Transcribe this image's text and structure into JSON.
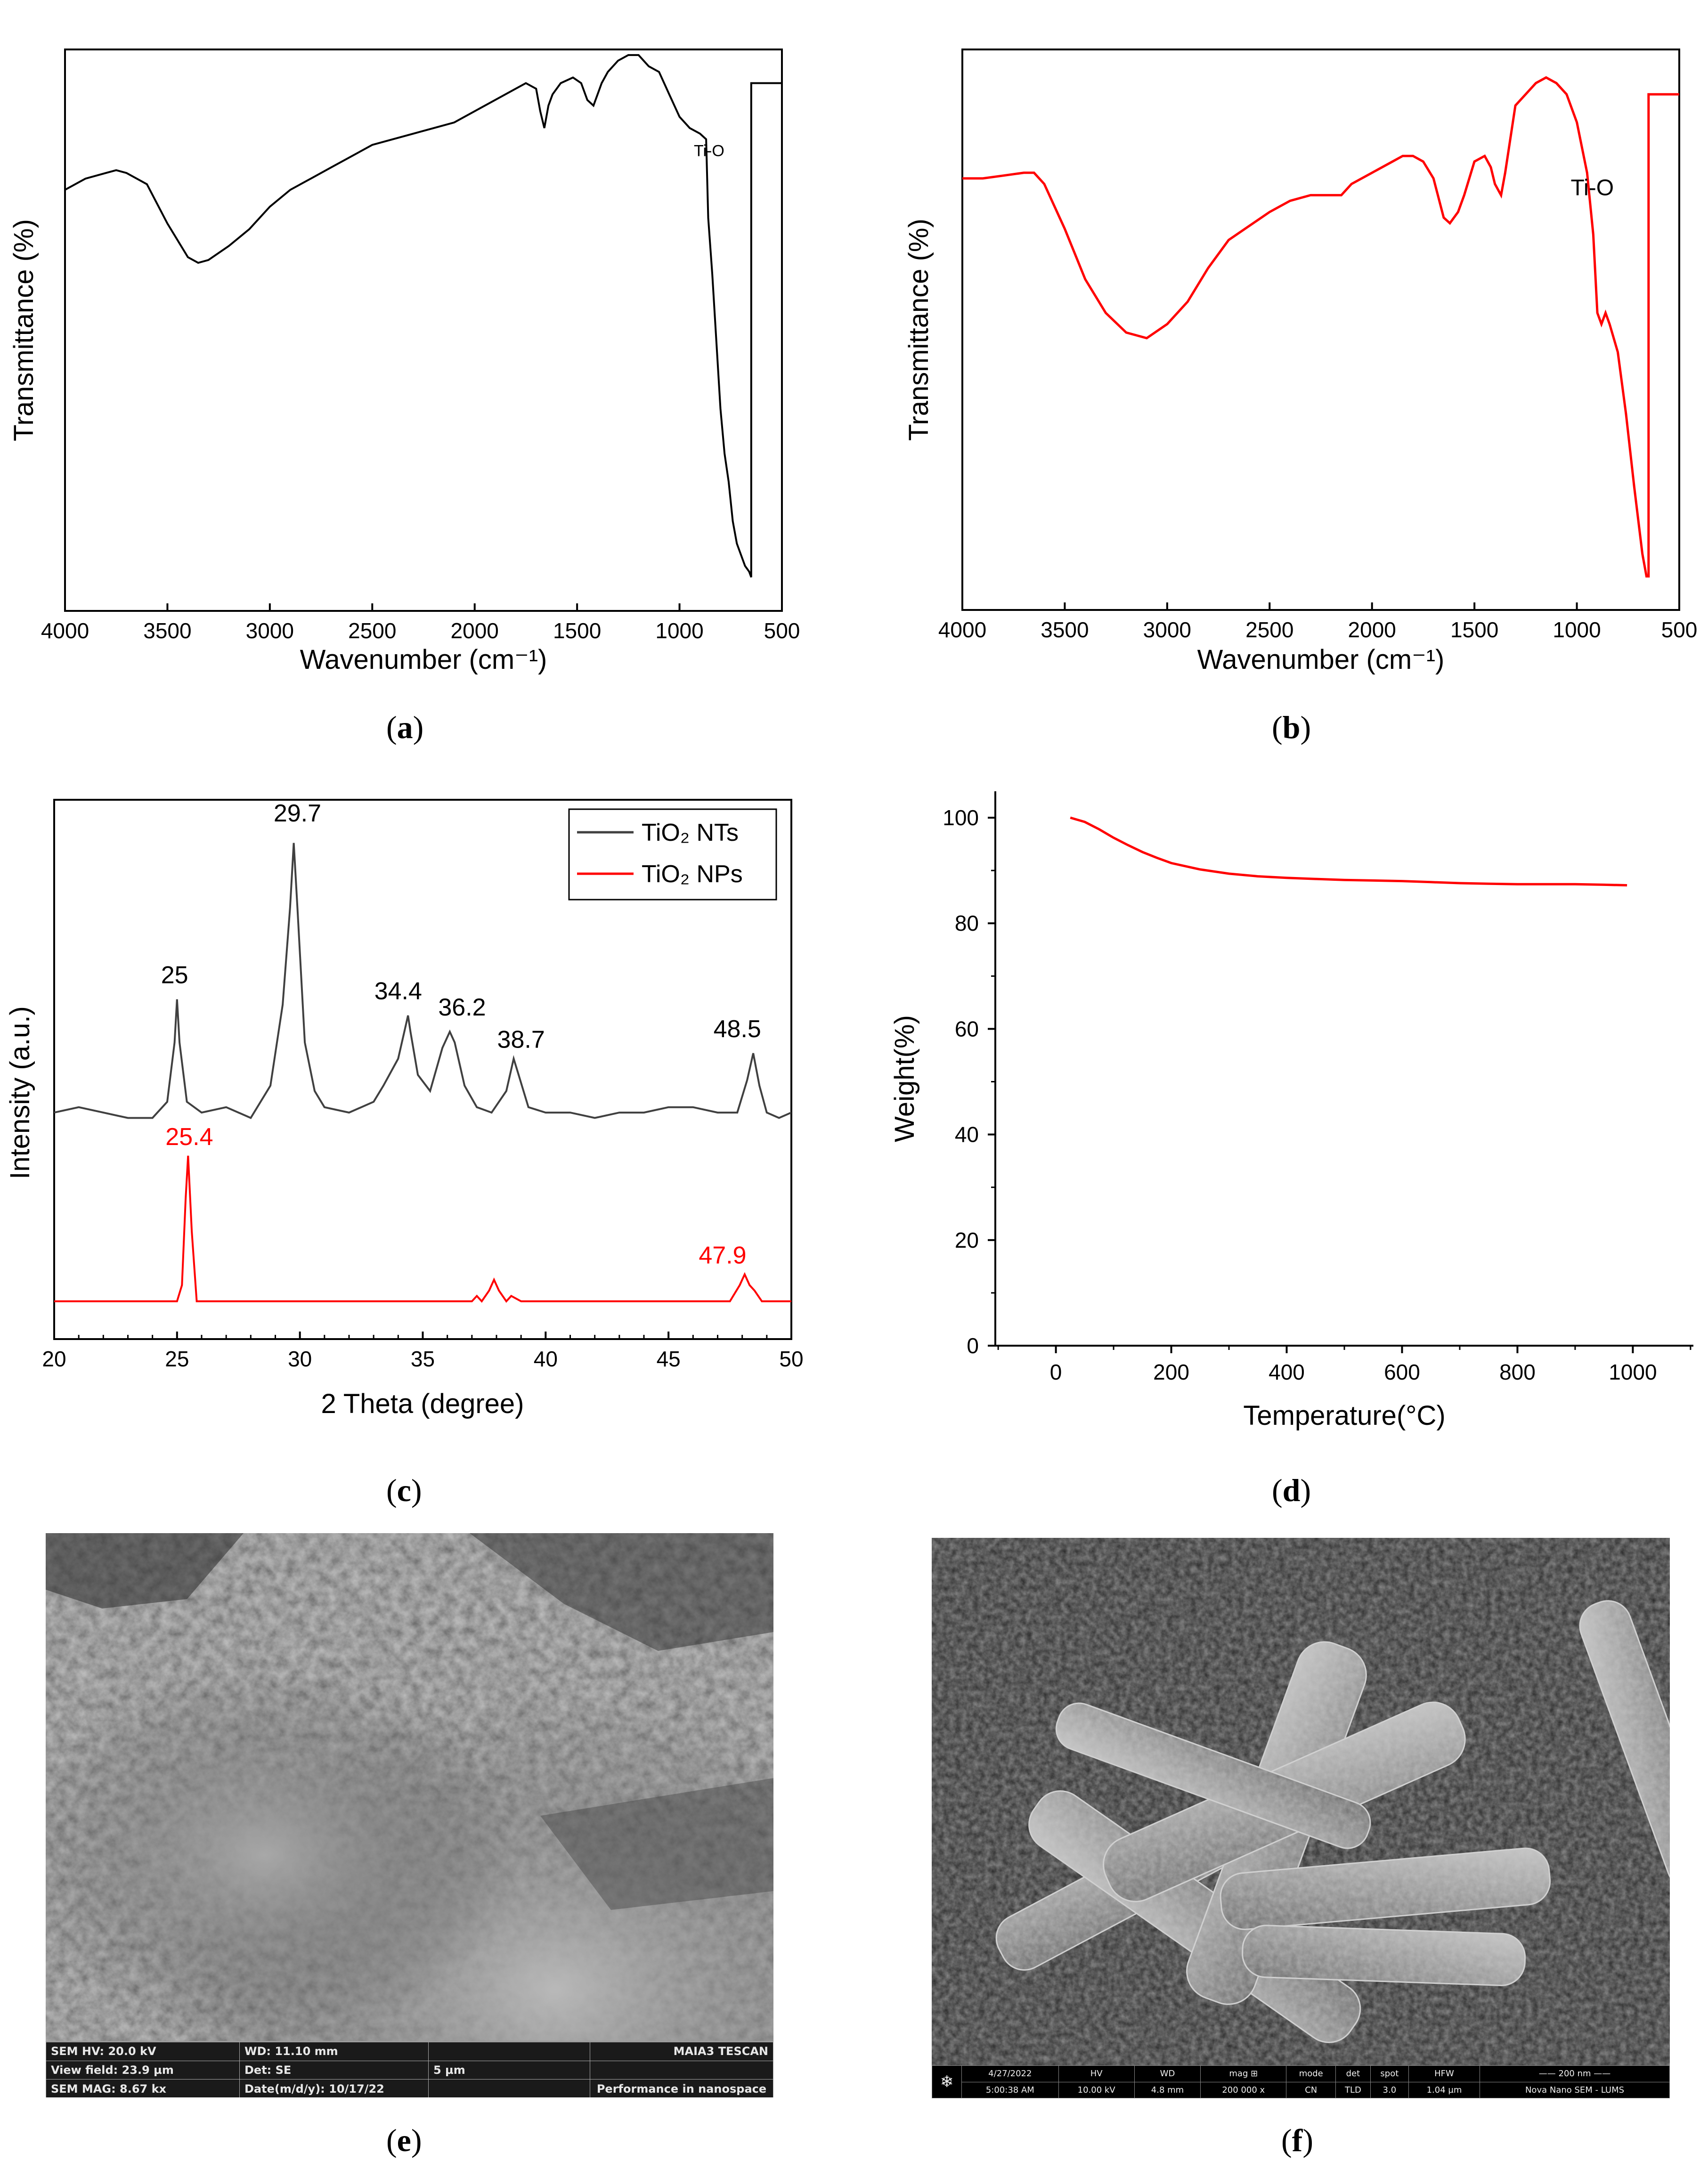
{
  "captions": {
    "a": "a",
    "b": "b",
    "c": "c",
    "d": "d",
    "e": "e",
    "f": "f"
  },
  "chart_data": [
    {
      "id": "a",
      "type": "line",
      "xlabel": "Wavenumber (cm⁻¹)",
      "ylabel": "Transmittance (%)",
      "xlim": [
        4000,
        500
      ],
      "ylim": [
        0,
        100
      ],
      "xticks": [
        4000,
        3500,
        3000,
        2500,
        2000,
        1500,
        1000,
        500
      ],
      "annotations": [
        {
          "text": "Ti-O",
          "x": 930,
          "y": 81
        }
      ],
      "color": "#000000",
      "series": [
        {
          "x": [
            4000,
            3900,
            3800,
            3750,
            3700,
            3600,
            3500,
            3400,
            3350,
            3300,
            3200,
            3100,
            3000,
            2900,
            2800,
            2700,
            2600,
            2500,
            2400,
            2300,
            2200,
            2100,
            2000,
            1900,
            1800,
            1750,
            1700,
            1680,
            1660,
            1640,
            1620,
            1580,
            1520,
            1480,
            1450,
            1420,
            1400,
            1380,
            1350,
            1300,
            1250,
            1200,
            1150,
            1100,
            1050,
            1000,
            950,
            900,
            870,
            860,
            840,
            820,
            800,
            780,
            760,
            740,
            720,
            700,
            680,
            660,
            650,
            650,
            560,
            560,
            500
          ],
          "y": [
            75,
            77,
            78,
            78.5,
            78,
            76,
            69,
            63,
            62,
            62.5,
            65,
            68,
            72,
            75,
            77,
            79,
            81,
            83,
            84,
            85,
            86,
            87,
            89,
            91,
            93,
            94,
            93,
            89,
            86,
            90,
            92,
            94,
            95,
            94,
            91,
            90,
            92,
            94,
            96,
            98,
            99,
            99,
            97,
            96,
            92,
            88,
            86,
            85,
            84,
            70,
            60,
            48,
            36,
            28,
            23,
            16,
            12,
            10,
            8,
            7,
            6,
            94,
            94,
            94,
            94
          ]
        }
      ]
    },
    {
      "id": "b",
      "type": "line",
      "xlabel": "Wavenumber (cm⁻¹)",
      "ylabel": "Transmittance (%)",
      "xlim": [
        4000,
        500
      ],
      "ylim": [
        0,
        100
      ],
      "xticks": [
        4000,
        3500,
        3000,
        2500,
        2000,
        1500,
        1000,
        500
      ],
      "annotations": [
        {
          "text": "Ti-O",
          "x": 1030,
          "y": 74
        }
      ],
      "color": "#ff0000",
      "series": [
        {
          "x": [
            4000,
            3900,
            3800,
            3700,
            3650,
            3600,
            3500,
            3400,
            3300,
            3200,
            3100,
            3000,
            2900,
            2800,
            2700,
            2600,
            2500,
            2400,
            2300,
            2200,
            2150,
            2100,
            2000,
            1900,
            1850,
            1800,
            1750,
            1700,
            1650,
            1620,
            1580,
            1550,
            1500,
            1450,
            1420,
            1400,
            1370,
            1350,
            1300,
            1250,
            1200,
            1150,
            1100,
            1050,
            1000,
            950,
            920,
            900,
            880,
            860,
            840,
            800,
            760,
            720,
            680,
            660,
            650,
            650,
            600,
            560,
            500
          ],
          "y": [
            77,
            77,
            77.5,
            78,
            78,
            76,
            68,
            59,
            53,
            49.5,
            48.5,
            51,
            55,
            61,
            66,
            68.5,
            71,
            73,
            74,
            74,
            74,
            76,
            78,
            80,
            81,
            81,
            80,
            77,
            70,
            69,
            71,
            74,
            80,
            81,
            79,
            76,
            74,
            78,
            90,
            92,
            94,
            95,
            94,
            92,
            87,
            78,
            67,
            53,
            51,
            53,
            51,
            46,
            35,
            22,
            10,
            6,
            6,
            92,
            92,
            92,
            92
          ]
        }
      ]
    },
    {
      "id": "c",
      "type": "line",
      "xlabel": "2 Theta (degree)",
      "ylabel": "Intensity (a.u.)",
      "xlim": [
        20,
        50
      ],
      "ylim": [
        0,
        100
      ],
      "xticks": [
        20,
        25,
        30,
        35,
        40,
        45,
        50
      ],
      "legend": {
        "position": "top-right",
        "entries": [
          {
            "name": "TiO₂ NTs",
            "color": "#404040"
          },
          {
            "name": "TiO₂ NPs",
            "color": "#ff0000"
          }
        ]
      },
      "series": [
        {
          "name": "TiO₂ NTs",
          "color": "#404040",
          "x": [
            20,
            21,
            22,
            23,
            24,
            24.6,
            24.9,
            25.0,
            25.1,
            25.4,
            26,
            27,
            28,
            28.8,
            29.3,
            29.6,
            29.75,
            29.9,
            30.2,
            30.6,
            31,
            32,
            33,
            33.4,
            34.0,
            34.3,
            34.4,
            34.5,
            34.8,
            35.3,
            35.8,
            36.1,
            36.3,
            36.7,
            37.2,
            37.8,
            38.4,
            38.7,
            38.9,
            39.3,
            40,
            41,
            42,
            43,
            44,
            45,
            46,
            47,
            47.8,
            48.2,
            48.45,
            48.7,
            49,
            49.5,
            50
          ],
          "y": [
            42,
            43,
            42,
            41,
            41,
            44,
            55,
            63,
            55,
            44,
            42,
            43,
            41,
            47,
            62,
            80,
            92,
            80,
            55,
            46,
            43,
            42,
            44,
            47,
            52,
            58,
            60,
            57,
            49,
            46,
            54,
            57,
            55,
            47,
            43,
            42,
            46,
            52,
            49,
            43,
            42,
            42,
            41,
            42,
            42,
            43,
            43,
            42,
            42,
            48,
            53,
            47,
            42,
            41,
            42
          ]
        },
        {
          "name": "TiO₂ NPs",
          "color": "#ff0000",
          "x": [
            20,
            22,
            24,
            25.0,
            25.2,
            25.35,
            25.45,
            25.6,
            25.8,
            27,
            30,
            33,
            36,
            37,
            37.2,
            37.4,
            37.7,
            37.9,
            38.1,
            38.4,
            38.6,
            39,
            42,
            45,
            47.5,
            47.9,
            48.1,
            48.3,
            48.5,
            48.8,
            50
          ],
          "y": [
            7,
            7,
            7,
            7,
            10,
            26,
            34,
            20,
            7,
            7,
            7,
            7,
            7,
            7,
            8,
            7,
            9,
            11,
            9,
            7,
            8,
            7,
            7,
            7,
            7,
            10,
            12,
            10,
            9,
            7,
            7
          ]
        }
      ],
      "annotations": [
        {
          "text": "25",
          "x": 24.9,
          "y": 66,
          "color": "#000000"
        },
        {
          "text": "29.7",
          "x": 29.9,
          "y": 96,
          "color": "#000000"
        },
        {
          "text": "34.4",
          "x": 34.0,
          "y": 63,
          "color": "#000000"
        },
        {
          "text": "36.2",
          "x": 36.6,
          "y": 60,
          "color": "#000000"
        },
        {
          "text": "38.7",
          "x": 39.0,
          "y": 54,
          "color": "#000000"
        },
        {
          "text": "48.5",
          "x": 47.8,
          "y": 56,
          "color": "#000000"
        },
        {
          "text": "25.4",
          "x": 25.5,
          "y": 36,
          "color": "#ff0000"
        },
        {
          "text": "47.9",
          "x": 47.2,
          "y": 14,
          "color": "#ff0000"
        }
      ]
    },
    {
      "id": "d",
      "type": "line",
      "xlabel": "Temperature(°C)",
      "ylabel": "Weight(%)",
      "xlim": [
        -105,
        1105
      ],
      "ylim": [
        0,
        105
      ],
      "xticks": [
        0,
        200,
        400,
        600,
        800,
        1000
      ],
      "yticks": [
        0,
        20,
        40,
        60,
        80,
        100
      ],
      "color": "#ff0000",
      "series": [
        {
          "x": [
            25,
            50,
            75,
            100,
            125,
            150,
            175,
            200,
            250,
            300,
            350,
            400,
            450,
            500,
            550,
            600,
            650,
            700,
            750,
            800,
            850,
            900,
            950,
            990
          ],
          "y": [
            100,
            99.2,
            97.8,
            96.2,
            94.8,
            93.5,
            92.4,
            91.4,
            90.2,
            89.4,
            88.9,
            88.6,
            88.4,
            88.2,
            88.1,
            88.0,
            87.8,
            87.6,
            87.5,
            87.4,
            87.4,
            87.4,
            87.3,
            87.2
          ]
        }
      ]
    }
  ],
  "sem_e": {
    "footer": [
      [
        "SEM HV: 20.0 kV",
        "WD: 11.10 mm",
        "",
        "MAIA3 TESCAN"
      ],
      [
        "View field: 23.9 µm",
        "Det: SE",
        "5 µm",
        ""
      ],
      [
        "SEM MAG: 8.67 kx",
        "Date(m/d/y): 10/17/22",
        "",
        "Performance in nanospace"
      ]
    ]
  },
  "sem_f": {
    "footer_top": [
      "4/27/2022",
      "HV",
      "WD",
      "mag ⊞",
      "mode",
      "det",
      "spot",
      "HFW",
      "—— 200 nm ——"
    ],
    "footer_bottom": [
      "5:00:38 AM",
      "10.00 kV",
      "4.8 mm",
      "200 000 x",
      "CN",
      "TLD",
      "3.0",
      "1.04 µm",
      "Nova Nano SEM - LUMS"
    ]
  }
}
